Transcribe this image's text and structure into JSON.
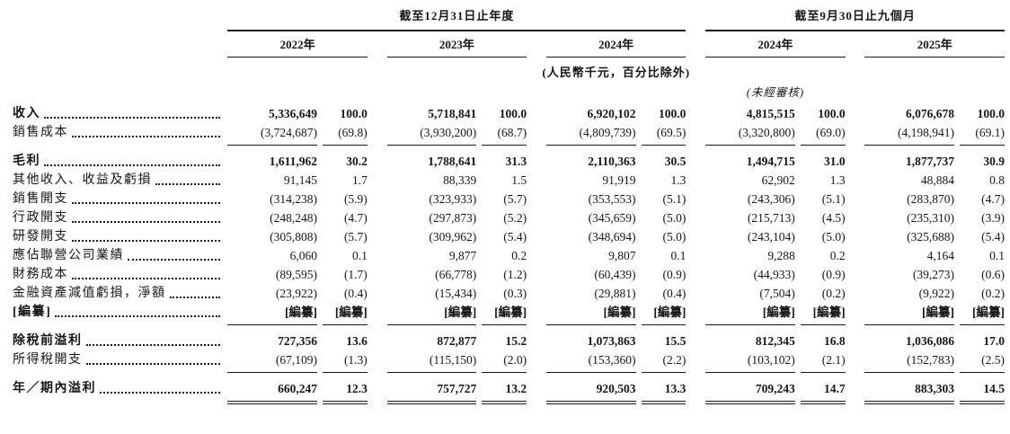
{
  "table": {
    "header": {
      "groups": [
        {
          "title": "截至12月31日止年度",
          "years": [
            "2022年",
            "2023年",
            "2024年"
          ]
        },
        {
          "title": "截至9月30日止九個月",
          "years": [
            "2024年",
            "2025年"
          ]
        }
      ],
      "currency_note": "(人民幣千元，百分比除外)",
      "unaudited_note": "(未經審核)"
    },
    "rows": [
      {
        "label": "收入",
        "bold": true,
        "space_above": false,
        "rule_below": "none",
        "values": [
          "5,336,649",
          "100.0",
          "5,718,841",
          "100.0",
          "6,920,102",
          "100.0",
          "4,815,515",
          "100.0",
          "6,076,678",
          "100.0"
        ]
      },
      {
        "label": "銷售成本",
        "bold": false,
        "space_above": false,
        "rule_below": "single",
        "values": [
          "(3,724,687)",
          "(69.8)",
          "(3,930,200)",
          "(68.7)",
          "(4,809,739)",
          "(69.5)",
          "(3,320,800)",
          "(69.0)",
          "(4,198,941)",
          "(69.1)"
        ]
      },
      {
        "label": "毛利",
        "bold": true,
        "space_above": true,
        "rule_below": "none",
        "values": [
          "1,611,962",
          "30.2",
          "1,788,641",
          "31.3",
          "2,110,363",
          "30.5",
          "1,494,715",
          "31.0",
          "1,877,737",
          "30.9"
        ]
      },
      {
        "label": "其他收入、收益及虧損",
        "bold": false,
        "space_above": false,
        "rule_below": "none",
        "values": [
          "91,145",
          "1.7",
          "88,339",
          "1.5",
          "91,919",
          "1.3",
          "62,902",
          "1.3",
          "48,884",
          "0.8"
        ]
      },
      {
        "label": "銷售開支",
        "bold": false,
        "space_above": false,
        "rule_below": "none",
        "values": [
          "(314,238)",
          "(5.9)",
          "(323,933)",
          "(5.7)",
          "(353,553)",
          "(5.1)",
          "(243,306)",
          "(5.1)",
          "(283,870)",
          "(4.7)"
        ]
      },
      {
        "label": "行政開支",
        "bold": false,
        "space_above": false,
        "rule_below": "none",
        "values": [
          "(248,248)",
          "(4.7)",
          "(297,873)",
          "(5.2)",
          "(345,659)",
          "(5.0)",
          "(215,713)",
          "(4.5)",
          "(235,310)",
          "(3.9)"
        ]
      },
      {
        "label": "研發開支",
        "bold": false,
        "space_above": false,
        "rule_below": "none",
        "values": [
          "(305,808)",
          "(5.7)",
          "(309,962)",
          "(5.4)",
          "(348,694)",
          "(5.0)",
          "(243,104)",
          "(5.0)",
          "(325,688)",
          "(5.4)"
        ]
      },
      {
        "label": "應佔聯營公司業績",
        "bold": false,
        "space_above": false,
        "rule_below": "none",
        "values": [
          "6,060",
          "0.1",
          "9,877",
          "0.2",
          "9,807",
          "0.1",
          "9,288",
          "0.2",
          "4,164",
          "0.1"
        ]
      },
      {
        "label": "財務成本",
        "bold": false,
        "space_above": false,
        "rule_below": "none",
        "values": [
          "(89,595)",
          "(1.7)",
          "(66,778)",
          "(1.2)",
          "(60,439)",
          "(0.9)",
          "(44,933)",
          "(0.9)",
          "(39,273)",
          "(0.6)"
        ]
      },
      {
        "label": "金融資產減值虧損，淨額",
        "bold": false,
        "space_above": false,
        "rule_below": "none",
        "values": [
          "(23,922)",
          "(0.4)",
          "(15,434)",
          "(0.3)",
          "(29,881)",
          "(0.4)",
          "(7,504)",
          "(0.2)",
          "(9,922)",
          "(0.2)"
        ]
      },
      {
        "label": "[編纂]",
        "bold": true,
        "space_above": false,
        "rule_below": "single",
        "values": [
          "[編纂]",
          "[編纂]",
          "[編纂]",
          "[編纂]",
          "[編纂]",
          "[編纂]",
          "[編纂]",
          "[編纂]",
          "[編纂]",
          "[編纂]"
        ]
      },
      {
        "label": "除稅前溢利",
        "bold": true,
        "space_above": true,
        "rule_below": "none",
        "values": [
          "727,356",
          "13.6",
          "872,877",
          "15.2",
          "1,073,863",
          "15.5",
          "812,345",
          "16.8",
          "1,036,086",
          "17.0"
        ]
      },
      {
        "label": "所得稅開支",
        "bold": false,
        "space_above": false,
        "rule_below": "single",
        "values": [
          "(67,109)",
          "(1.3)",
          "(115,150)",
          "(2.0)",
          "(153,360)",
          "(2.2)",
          "(103,102)",
          "(2.1)",
          "(152,783)",
          "(2.5)"
        ]
      },
      {
        "label": "年／期內溢利",
        "bold": true,
        "space_above": true,
        "rule_below": "double",
        "values": [
          "660,247",
          "12.3",
          "757,727",
          "13.2",
          "920,503",
          "13.3",
          "709,243",
          "14.7",
          "883,303",
          "14.5"
        ]
      }
    ]
  }
}
